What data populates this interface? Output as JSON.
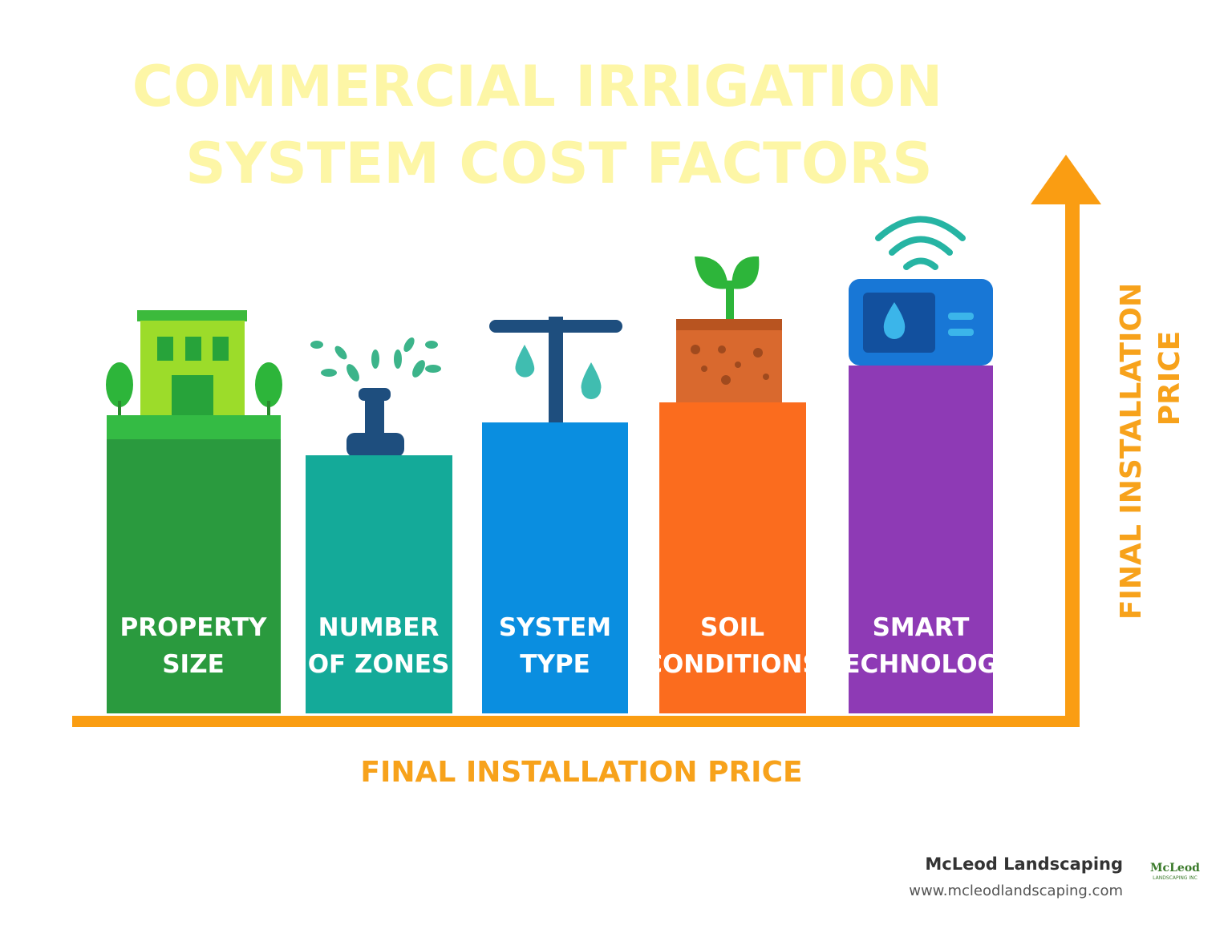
{
  "header": {
    "title": [
      "COMMERCIAL IRRIGATION",
      "SYSTEM COST FACTORS"
    ]
  },
  "factors": [
    {
      "label": [
        "PROPERTY",
        "SIZE"
      ]
    },
    {
      "label": [
        "NUMBER",
        "OF ZONES"
      ]
    },
    {
      "label": [
        "SYSTEM",
        "TYPE"
      ]
    },
    {
      "label": [
        "SOIL",
        "CONDITIONS"
      ]
    },
    {
      "label": [
        "SMART",
        "TECHNOLOGY"
      ]
    }
  ],
  "axis": {
    "x_label": "FINAL INSTALLATION PRICE",
    "y_label": [
      "FINAL INSTALLATION",
      "PRICE"
    ]
  },
  "footer": {
    "company": "McLeod Landscaping",
    "url": "www.mcleodlandscaping.com",
    "logo": [
      "McLeod",
      "LANDSCAPING INC"
    ]
  }
}
